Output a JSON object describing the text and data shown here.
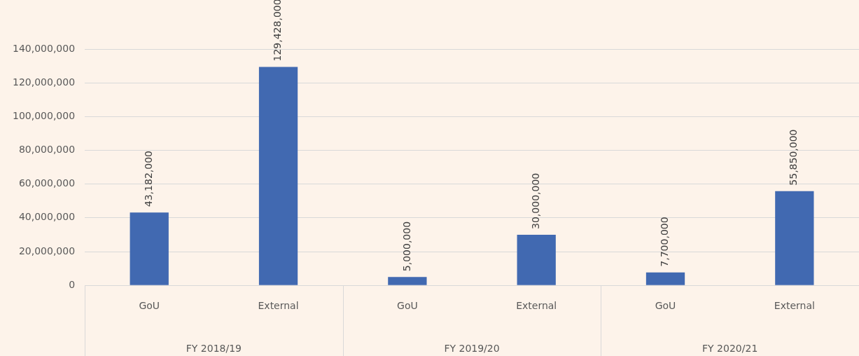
{
  "chart_data": {
    "type": "bar",
    "categories": [
      "GoU",
      "External",
      "GoU",
      "External",
      "GoU",
      "External"
    ],
    "values": [
      43182000,
      129428000,
      5000000,
      30000000,
      7700000,
      55850000
    ],
    "value_labels": [
      "43,182,000",
      "129,428,000",
      "5,000,000",
      "30,000,000",
      "7,700,000",
      "55,850,000"
    ],
    "color": "#4169b1",
    "ylim": [
      0,
      140000000
    ],
    "yticks": [
      {
        "value": 0,
        "label": "0"
      },
      {
        "value": 20000000,
        "label": "20,000,000"
      },
      {
        "value": 40000000,
        "label": "40,000,000"
      },
      {
        "value": 60000000,
        "label": "60,000,000"
      },
      {
        "value": 80000000,
        "label": "80,000,000"
      },
      {
        "value": 100000000,
        "label": "100,000,000"
      },
      {
        "value": 120000000,
        "label": "120,000,000"
      },
      {
        "value": 140000000,
        "label": "140,000,000"
      }
    ],
    "grid": "y",
    "annotations": [
      "FY 2018/19",
      "FY 2019/20",
      "FY 2020/21"
    ]
  }
}
